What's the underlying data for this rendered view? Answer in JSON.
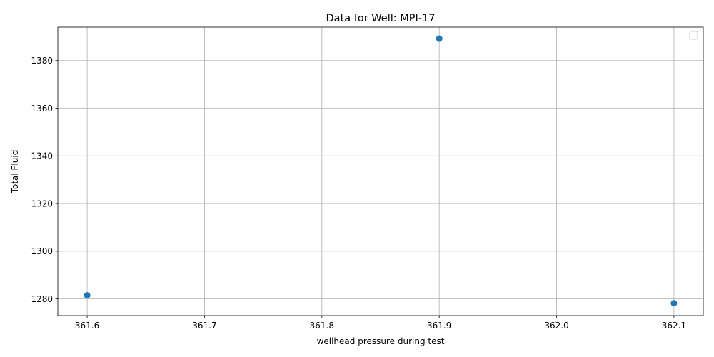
{
  "chart_data": {
    "type": "scatter",
    "title": "Data for Well: MPI-17",
    "xlabel": "wellhead pressure during test",
    "ylabel": "Total Fluid",
    "xlim": [
      361.575,
      362.125
    ],
    "ylim": [
      1273,
      1394
    ],
    "xticks": [
      "361.6",
      "361.7",
      "361.8",
      "361.9",
      "362.0",
      "362.1"
    ],
    "xtick_values": [
      361.6,
      361.7,
      361.8,
      361.9,
      362.0,
      362.1
    ],
    "yticks": [
      "1280",
      "1300",
      "1320",
      "1340",
      "1360",
      "1380"
    ],
    "ytick_values": [
      1280,
      1300,
      1320,
      1340,
      1360,
      1380
    ],
    "grid": true,
    "legend": "top-right",
    "marker_color": "#1f77b4",
    "points": [
      {
        "x": 361.6,
        "y": 1281.5
      },
      {
        "x": 361.9,
        "y": 1389.2
      },
      {
        "x": 362.1,
        "y": 1278.2
      }
    ]
  }
}
